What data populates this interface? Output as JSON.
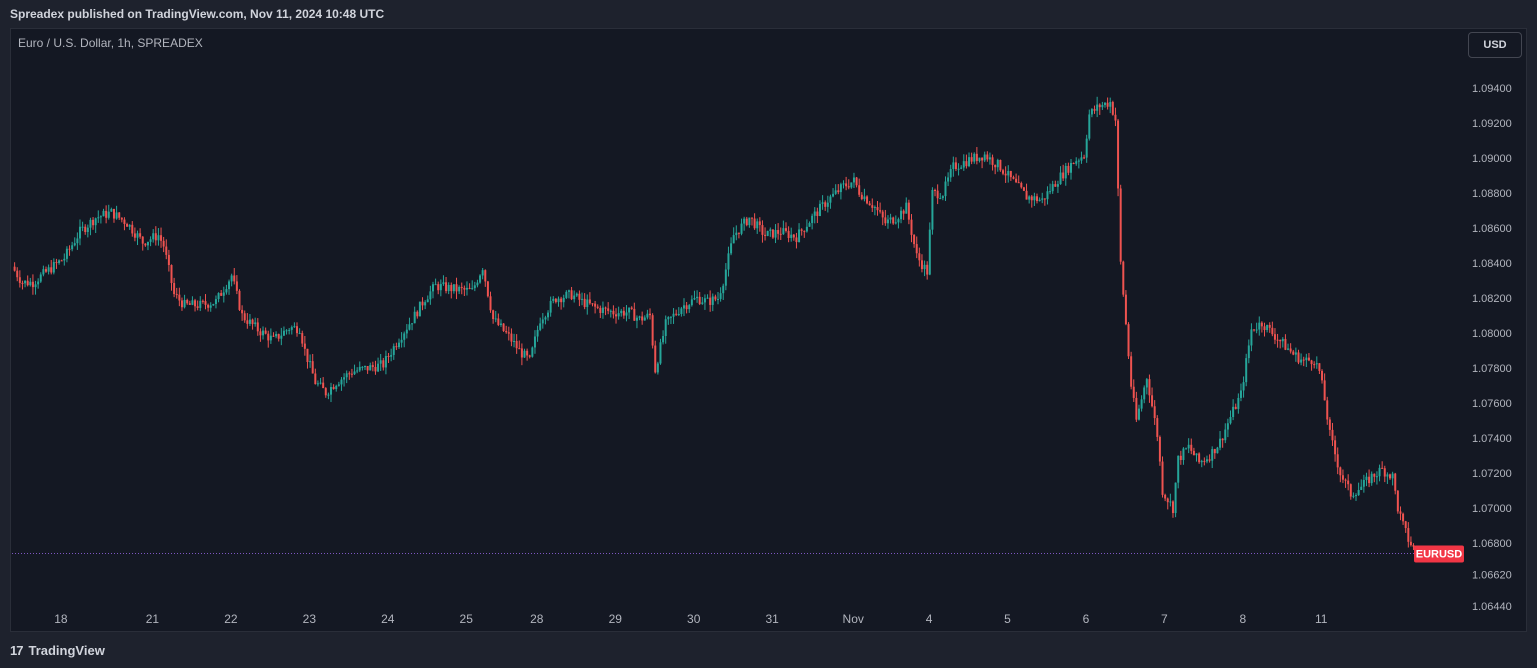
{
  "header": {
    "published_text": "Spreadex published on TradingView.com, Nov 11, 2024 10:48 UTC"
  },
  "chart_header": {
    "symbol_title": "Euro / U.S. Dollar, 1h, SPREADEX",
    "currency_label": "USD"
  },
  "footer": {
    "logo_glyph": "17",
    "brand": "TradingView"
  },
  "colors": {
    "up": "#26a69a",
    "down": "#ef5350",
    "tag": "#f23645",
    "dotted_line": "#7e57c2",
    "background": "#141823"
  },
  "chart_data": {
    "type": "candlestick",
    "symbol_tag": "EURUSD",
    "y_ticks": [
      "1.09400",
      "1.09200",
      "1.09000",
      "1.08800",
      "1.08600",
      "1.08400",
      "1.08200",
      "1.08000",
      "1.07800",
      "1.07600",
      "1.07400",
      "1.07200",
      "1.07000",
      "1.06800",
      "1.06620",
      "1.06440"
    ],
    "x_ticks": [
      "18",
      "21",
      "22",
      "23",
      "24",
      "25",
      "28",
      "29",
      "30",
      "31",
      "Nov",
      "4",
      "5",
      "6",
      "7",
      "8",
      "11"
    ],
    "ylim": [
      1.0644,
      1.0955
    ],
    "last_price": 1.0674,
    "grid": false,
    "path_points": [
      [
        0,
        1.0838
      ],
      [
        4,
        1.0829
      ],
      [
        8,
        1.0829
      ],
      [
        14,
        1.0836
      ],
      [
        20,
        1.0843
      ],
      [
        26,
        1.0858
      ],
      [
        32,
        1.0866
      ],
      [
        38,
        1.0869
      ],
      [
        44,
        1.0863
      ],
      [
        50,
        1.0852
      ],
      [
        56,
        1.0856
      ],
      [
        58,
        1.085
      ],
      [
        62,
        1.0822
      ],
      [
        66,
        1.0816
      ],
      [
        72,
        1.0816
      ],
      [
        78,
        1.0818
      ],
      [
        82,
        1.0828
      ],
      [
        84,
        1.0833
      ],
      [
        88,
        1.081
      ],
      [
        94,
        1.0802
      ],
      [
        100,
        1.0796
      ],
      [
        106,
        1.0803
      ],
      [
        110,
        1.0803
      ],
      [
        112,
        1.079
      ],
      [
        116,
        1.0772
      ],
      [
        120,
        1.0766
      ],
      [
        124,
        1.0772
      ],
      [
        130,
        1.0778
      ],
      [
        136,
        1.078
      ],
      [
        142,
        1.0782
      ],
      [
        148,
        1.0797
      ],
      [
        154,
        1.081
      ],
      [
        158,
        1.082
      ],
      [
        162,
        1.0827
      ],
      [
        166,
        1.0826
      ],
      [
        170,
        1.0825
      ],
      [
        176,
        1.0824
      ],
      [
        180,
        1.0838
      ],
      [
        184,
        1.0808
      ],
      [
        190,
        1.0798
      ],
      [
        194,
        1.079
      ],
      [
        198,
        1.0784
      ],
      [
        202,
        1.0808
      ],
      [
        208,
        1.082
      ],
      [
        214,
        1.0822
      ],
      [
        218,
        1.0818
      ],
      [
        224,
        1.0814
      ],
      [
        230,
        1.0812
      ],
      [
        236,
        1.0812
      ],
      [
        240,
        1.0808
      ],
      [
        244,
        1.081
      ],
      [
        246,
        1.0779
      ],
      [
        250,
        1.0805
      ],
      [
        256,
        1.0815
      ],
      [
        262,
        1.082
      ],
      [
        266,
        1.0818
      ],
      [
        270,
        1.082
      ],
      [
        272,
        1.083
      ],
      [
        276,
        1.0856
      ],
      [
        282,
        1.0866
      ],
      [
        288,
        1.0856
      ],
      [
        294,
        1.0858
      ],
      [
        300,
        1.0855
      ],
      [
        306,
        1.0866
      ],
      [
        312,
        1.0876
      ],
      [
        318,
        1.0884
      ],
      [
        322,
        1.0887
      ],
      [
        324,
        1.0881
      ],
      [
        330,
        1.0872
      ],
      [
        334,
        1.0863
      ],
      [
        338,
        1.0866
      ],
      [
        342,
        1.0872
      ],
      [
        346,
        1.0844
      ],
      [
        350,
        1.0835
      ],
      [
        352,
        1.088
      ],
      [
        356,
        1.088
      ],
      [
        360,
        1.0895
      ],
      [
        366,
        1.0899
      ],
      [
        372,
        1.0902
      ],
      [
        378,
        1.0895
      ],
      [
        382,
        1.0888
      ],
      [
        388,
        1.0878
      ],
      [
        394,
        1.0876
      ],
      [
        400,
        1.0888
      ],
      [
        406,
        1.0898
      ],
      [
        410,
        1.0902
      ],
      [
        412,
        1.0925
      ],
      [
        416,
        1.093
      ],
      [
        420,
        1.0932
      ],
      [
        422,
        1.0922
      ],
      [
        424,
        1.084
      ],
      [
        428,
        1.077
      ],
      [
        430,
        1.075
      ],
      [
        434,
        1.0775
      ],
      [
        438,
        1.0742
      ],
      [
        440,
        1.071
      ],
      [
        444,
        1.07
      ],
      [
        446,
        1.0728
      ],
      [
        450,
        1.0735
      ],
      [
        454,
        1.0726
      ],
      [
        458,
        1.073
      ],
      [
        462,
        1.0738
      ],
      [
        466,
        1.0752
      ],
      [
        470,
        1.0765
      ],
      [
        474,
        1.0802
      ],
      [
        478,
        1.0806
      ],
      [
        482,
        1.08
      ],
      [
        486,
        1.0794
      ],
      [
        490,
        1.0788
      ],
      [
        494,
        1.0784
      ],
      [
        498,
        1.0785
      ],
      [
        500,
        1.0778
      ],
      [
        502,
        1.0762
      ],
      [
        504,
        1.0742
      ],
      [
        508,
        1.072
      ],
      [
        512,
        1.0708
      ],
      [
        516,
        1.0712
      ],
      [
        520,
        1.0718
      ],
      [
        524,
        1.0722
      ],
      [
        528,
        1.0718
      ],
      [
        530,
        1.07
      ],
      [
        532,
        1.069
      ],
      [
        534,
        1.0682
      ],
      [
        536,
        1.0677
      ]
    ],
    "x_tick_positions": [
      8,
      43,
      73,
      103,
      133,
      163,
      190,
      220,
      250,
      280,
      311,
      340,
      370,
      400,
      430,
      460,
      490
    ]
  }
}
